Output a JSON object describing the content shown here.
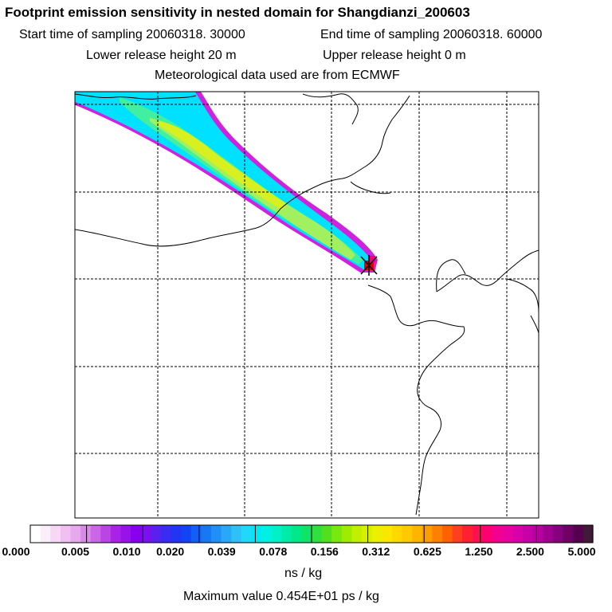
{
  "header": {
    "title": "Footprint emission sensitivity in nested domain for Shangdianzi_200603",
    "start_time": "Start time of sampling 20060318. 30000",
    "end_time": "End time of sampling 20060318. 60000",
    "lower_release": "Lower release height   20 m",
    "upper_release": "Upper release height    0 m",
    "met_data": "Meteorological data used are from ECMWF"
  },
  "chart_data": {
    "type": "heatmap",
    "title": "Footprint emission sensitivity in nested domain for Shangdianzi_200603",
    "colorbar": {
      "ticks": [
        "0.000",
        "0.005",
        "0.010",
        "0.020",
        "0.039",
        "0.078",
        "0.156",
        "0.312",
        "0.625",
        "1.250",
        "2.500",
        "5.000"
      ],
      "bins": 10,
      "unit": "ns / kg"
    },
    "max_value": "Maximum value  0.454E+01 ps / kg",
    "grid": true,
    "plume": {
      "direction": "from north-west toward release point",
      "receptor": "Shangdianzi"
    },
    "colors": {
      "plume_edge": "#d020e0",
      "plume_outer": "#00e0ff",
      "plume_mid": "#40f080",
      "plume_core": "#d8f020",
      "receptor": "#e00000"
    }
  }
}
